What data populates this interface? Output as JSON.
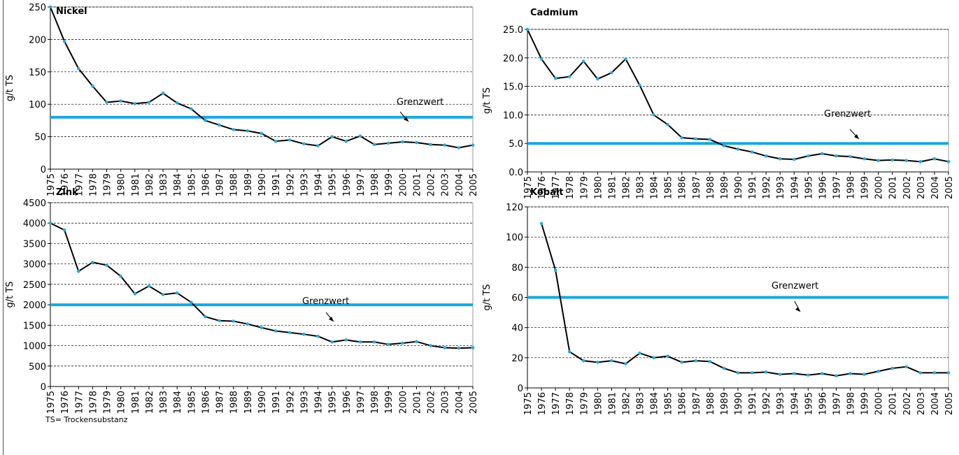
{
  "chart_data": [
    {
      "type": "line",
      "title": "Nickel",
      "y_label": "g/t TS",
      "line_color": "#000000",
      "marker_color": "#29a8e0",
      "grid": true,
      "x": [
        1975,
        1976,
        1977,
        1978,
        1979,
        1980,
        1981,
        1982,
        1983,
        1984,
        1985,
        1986,
        1987,
        1988,
        1989,
        1990,
        1991,
        1992,
        1993,
        1994,
        1995,
        1996,
        1997,
        1998,
        1999,
        2000,
        2001,
        2002,
        2003,
        2004,
        2005
      ],
      "values": [
        250,
        197,
        155,
        128,
        103,
        105,
        101,
        103,
        117,
        102,
        93,
        75,
        68,
        61,
        59,
        55,
        43,
        45,
        39,
        36,
        50,
        43,
        51,
        38,
        40,
        42,
        41,
        38,
        37,
        33,
        37
      ],
      "threshold": {
        "label": "Grenzwert",
        "value": 80,
        "color": "#1aa7dc"
      },
      "xlim": [
        1975,
        2005
      ],
      "ylim": [
        0,
        250
      ],
      "yticks": [
        0,
        50,
        100,
        150,
        200,
        250
      ]
    },
    {
      "type": "line",
      "title": "Cadmium",
      "y_label": "g/t TS",
      "line_color": "#000000",
      "marker_color": "#29a8e0",
      "grid": true,
      "x": [
        1975,
        1976,
        1977,
        1978,
        1979,
        1980,
        1981,
        1982,
        1983,
        1984,
        1985,
        1986,
        1987,
        1988,
        1989,
        1990,
        1991,
        1992,
        1993,
        1994,
        1995,
        1996,
        1997,
        1998,
        1999,
        2000,
        2001,
        2002,
        2003,
        2004,
        2005
      ],
      "values": [
        25,
        19.8,
        16.4,
        16.7,
        19.4,
        16.3,
        17.4,
        19.8,
        15.2,
        10,
        8.3,
        6,
        5.8,
        5.7,
        4.6,
        4,
        3.5,
        2.8,
        2.3,
        2.2,
        2.8,
        3.2,
        2.8,
        2.7,
        2.3,
        2,
        2.1,
        2,
        1.8,
        2.3,
        1.8
      ],
      "threshold": {
        "label": "Grenzwert",
        "value": 5,
        "color": "#1aa7dc"
      },
      "xlim": [
        1975,
        2005
      ],
      "ylim": [
        0,
        25
      ],
      "yticks": [
        {
          "value": 0,
          "label": "0.0"
        },
        {
          "value": 5,
          "label": "5.0"
        },
        {
          "value": 10,
          "label": "10.0"
        },
        {
          "value": 15,
          "label": "15.0"
        },
        {
          "value": 20,
          "label": "20.0"
        },
        {
          "value": 25,
          "label": "25.0"
        }
      ]
    },
    {
      "type": "line",
      "title": "Zink",
      "y_label": "g/t TS",
      "line_color": "#000000",
      "marker_color": "#29a8e0",
      "grid": true,
      "x": [
        1975,
        1976,
        1977,
        1978,
        1979,
        1980,
        1981,
        1982,
        1983,
        1984,
        1985,
        1986,
        1987,
        1988,
        1989,
        1990,
        1991,
        1992,
        1993,
        1994,
        1995,
        1996,
        1997,
        1998,
        1999,
        2000,
        2001,
        2002,
        2003,
        2004,
        2005
      ],
      "values": [
        4000,
        3830,
        2820,
        3040,
        2970,
        2700,
        2270,
        2460,
        2250,
        2290,
        2060,
        1710,
        1610,
        1600,
        1530,
        1440,
        1360,
        1320,
        1280,
        1230,
        1090,
        1140,
        1090,
        1090,
        1030,
        1060,
        1100,
        1000,
        950,
        940,
        950
      ],
      "threshold": {
        "label": "Grenzwert",
        "value": 2000,
        "color": "#1aa7dc"
      },
      "xlim": [
        1975,
        2005
      ],
      "ylim": [
        0,
        4500
      ],
      "yticks": [
        0,
        500,
        1000,
        1500,
        2000,
        2500,
        3000,
        3500,
        4000,
        4500
      ]
    },
    {
      "type": "line",
      "title": "Kobalt",
      "y_label": "g/t TS",
      "line_color": "#000000",
      "marker_color": "#29a8e0",
      "grid": true,
      "x": [
        1975,
        1976,
        1977,
        1978,
        1979,
        1980,
        1981,
        1982,
        1983,
        1984,
        1985,
        1986,
        1987,
        1988,
        1989,
        1990,
        1991,
        1992,
        1993,
        1994,
        1995,
        1996,
        1997,
        1998,
        1999,
        2000,
        2001,
        2002,
        2003,
        2004,
        2005
      ],
      "values": [
        null,
        109,
        78,
        24,
        18,
        17,
        18,
        16,
        23,
        20,
        21,
        17,
        18,
        17.5,
        13,
        10,
        10,
        10.5,
        9,
        9.5,
        8.5,
        9.5,
        8,
        9.5,
        9,
        11,
        13,
        14,
        10,
        10,
        10
      ],
      "threshold": {
        "label": "Grenzwert",
        "value": 60,
        "color": "#1aa7dc"
      },
      "xlim": [
        1975,
        2005
      ],
      "ylim": [
        0,
        120
      ],
      "yticks": [
        0,
        20,
        40,
        60,
        80,
        100,
        120
      ]
    }
  ],
  "footnote": "TS= Trockensubstanz"
}
